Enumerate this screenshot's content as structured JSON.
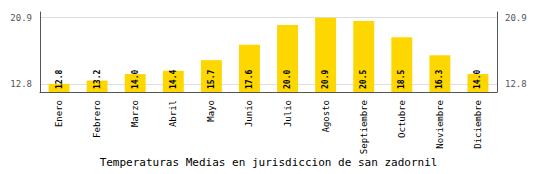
{
  "chart_data": {
    "type": "bar",
    "title": "Temperaturas Medias en jurisdiccion de san zadornil",
    "categories": [
      "Enero",
      "Febrero",
      "Marzo",
      "Abril",
      "Mayo",
      "Junio",
      "Julio",
      "Agosto",
      "Septiembre",
      "Octubre",
      "Noviembre",
      "Diciembre"
    ],
    "values": [
      12.8,
      13.2,
      14.0,
      14.4,
      15.7,
      17.6,
      20.0,
      20.9,
      20.5,
      18.5,
      16.3,
      14.0
    ],
    "value_labels": [
      "12.8",
      "13.2",
      "14.0",
      "14.4",
      "15.7",
      "17.6",
      "20.0",
      "20.9",
      "20.5",
      "18.5",
      "16.3",
      "14.0"
    ],
    "color": "#FFD700",
    "ylim": [
      11.8,
      21.6
    ],
    "yticks": [
      12.8,
      20.9
    ],
    "y2lim": [
      11.8,
      21.6
    ],
    "y2ticks": [
      12.8,
      20.9
    ],
    "grid": true,
    "data_labels": true
  }
}
